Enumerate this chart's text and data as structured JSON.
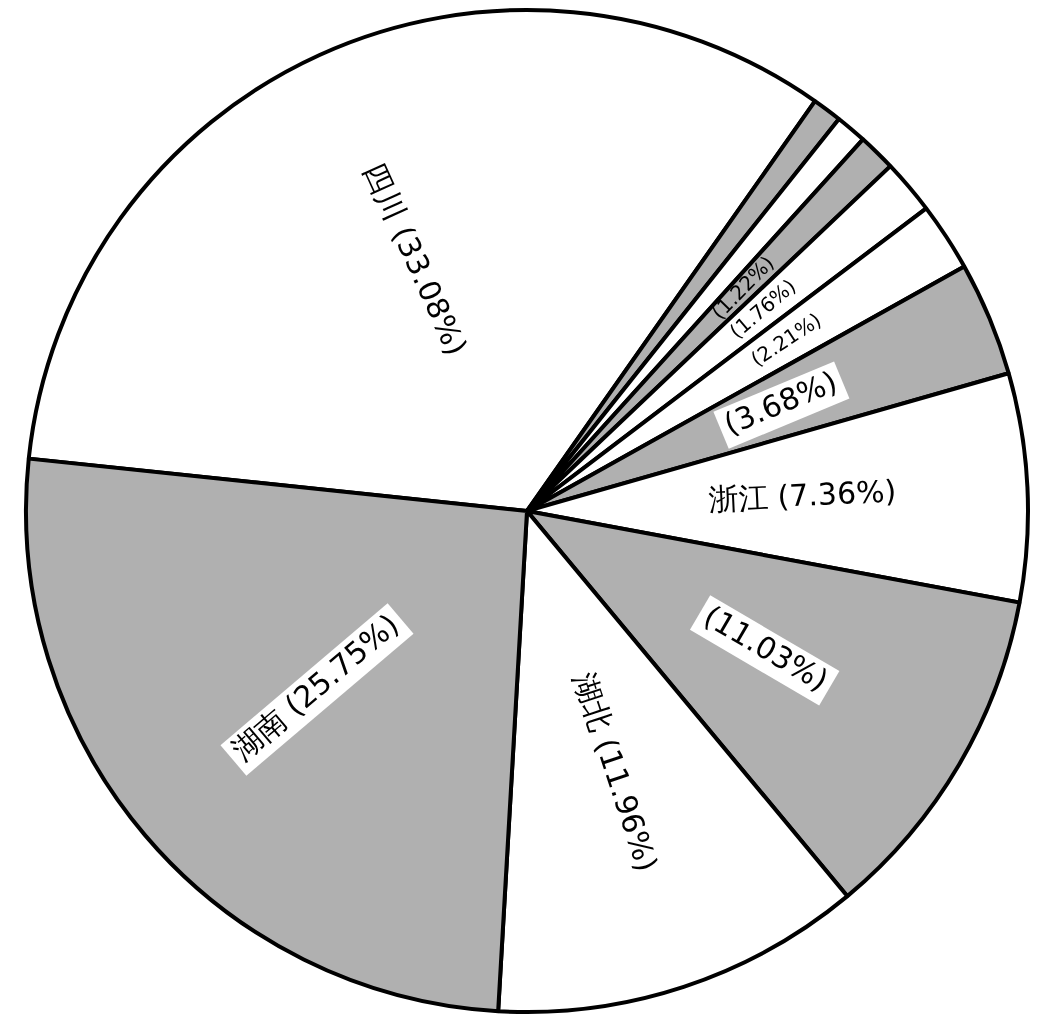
{
  "chart_data": {
    "type": "pie",
    "categories": [
      "四川",
      null,
      null,
      null,
      null,
      null,
      null,
      "浙江",
      null,
      "湖北",
      "湖南"
    ],
    "values": [
      33.08,
      0.95,
      1.0,
      1.22,
      1.76,
      2.21,
      3.68,
      7.36,
      11.03,
      11.96,
      25.75
    ],
    "value_labels": [
      "(33.08%)",
      null,
      null,
      "(1.22%)",
      "(1.76%)",
      "(2.21%)",
      "(3.68%)",
      "(7.36%)",
      "(11.03%)",
      "(11.96%)",
      "(25.75%)"
    ],
    "colors": [
      "#ffffff",
      "#b0b0b0",
      "#ffffff",
      "#b0b0b0",
      "#ffffff",
      "#ffffff",
      "#b0b0b0",
      "#ffffff",
      "#b0b0b0",
      "#ffffff",
      "#b0b0b0"
    ],
    "legend": false
  }
}
